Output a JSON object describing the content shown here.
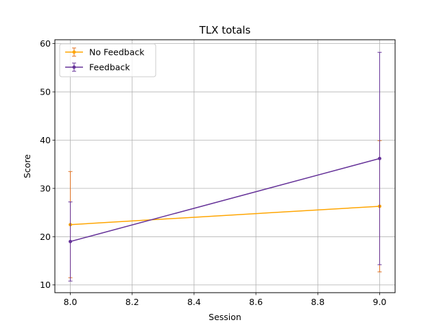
{
  "chart_data": {
    "type": "line",
    "title": "TLX totals",
    "xlabel": "Session",
    "ylabel": "Score",
    "xlim": [
      7.95,
      9.05
    ],
    "ylim": [
      8.4,
      60.8
    ],
    "xticks": [
      "8.0",
      "8.2",
      "8.4",
      "8.6",
      "8.8",
      "9.0"
    ],
    "yticks": [
      "10",
      "20",
      "30",
      "40",
      "50",
      "60"
    ],
    "grid": true,
    "legend_position": "upper-left",
    "error_bars": true,
    "series": [
      {
        "name": "No Feedback",
        "color": "#ffa500",
        "errcolor": "#e07020",
        "x": [
          8,
          9
        ],
        "y": [
          22.5,
          26.3
        ],
        "err": [
          11.0,
          13.6
        ]
      },
      {
        "name": "Feedback",
        "color": "#663399",
        "errcolor": "#663399",
        "x": [
          8,
          9
        ],
        "y": [
          19.0,
          36.2
        ],
        "err": [
          8.2,
          22.0
        ]
      }
    ]
  }
}
